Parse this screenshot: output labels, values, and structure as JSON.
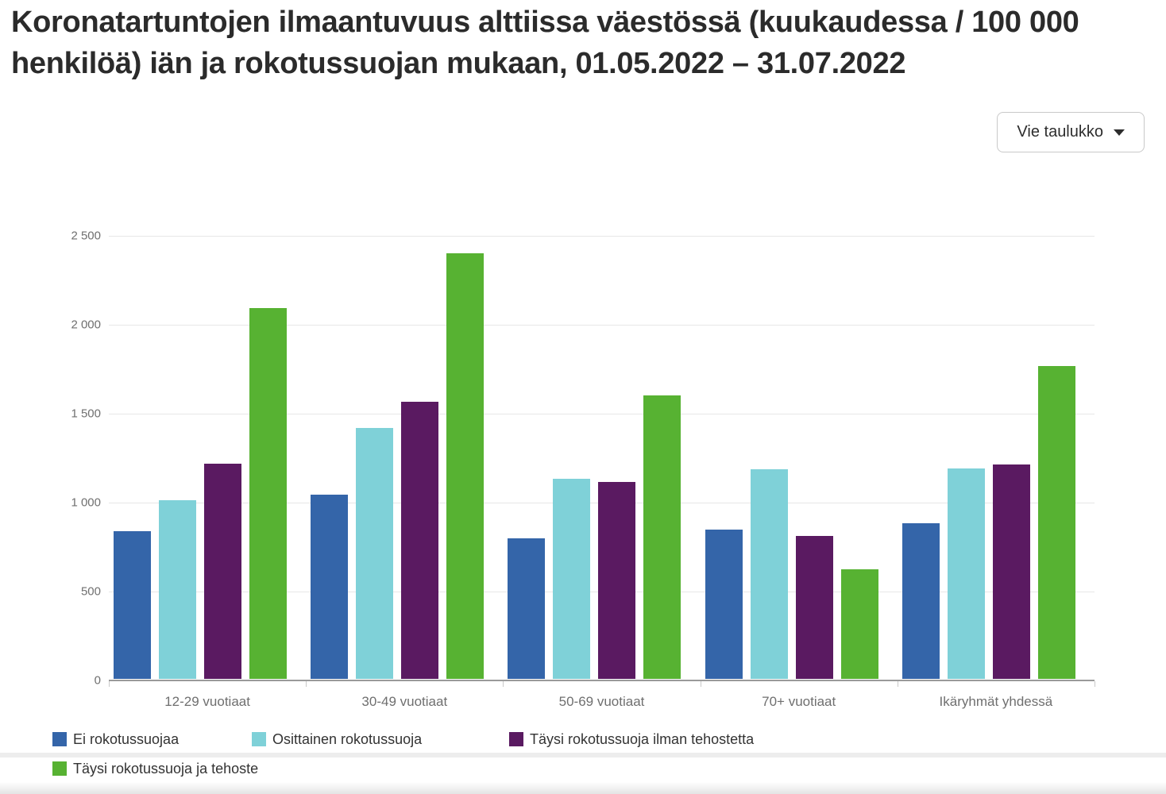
{
  "header": {
    "title_line1": "Koronatartuntojen ilmaantuvuus alttiissa väestössä (kuukaudessa / 100 000",
    "title_line2": "henkilöä) iän ja rokotussuojan mukaan, 01.05.2022 – 31.07.2022"
  },
  "toolbar": {
    "export_label": "Vie taulukko"
  },
  "chart_data": {
    "type": "bar",
    "title": "Koronatartuntojen ilmaantuvuus alttiissa väestössä (kuukaudessa / 100 000 henkilöä) iän ja rokotussuojan mukaan, 01.05.2022 – 31.07.2022",
    "categories": [
      "12-29 vuotiaat",
      "30-49 vuotiaat",
      "50-69 vuotiaat",
      "70+ vuotiaat",
      "Ikäryhmät yhdessä"
    ],
    "series": [
      {
        "name": "Ei rokotussuojaa",
        "color": "#3465a9",
        "values": [
          830,
          1035,
          790,
          840,
          875
        ]
      },
      {
        "name": "Osittainen rokotussuoja",
        "color": "#7fd1d8",
        "values": [
          1005,
          1410,
          1125,
          1180,
          1185
        ]
      },
      {
        "name": "Täysi rokotussuoja ilman tehostetta",
        "color": "#5a1a61",
        "values": [
          1210,
          1560,
          1105,
          805,
          1205
        ]
      },
      {
        "name": "Täysi rokotussuoja ja tehoste",
        "color": "#57b232",
        "values": [
          2085,
          2395,
          1595,
          615,
          1760
        ]
      }
    ],
    "xlabel": "",
    "ylabel": "",
    "ylim": [
      0,
      2500
    ],
    "yticks": [
      0,
      500,
      1000,
      1500,
      2000,
      2500
    ],
    "ytick_labels": [
      "0",
      "500",
      "1 000",
      "1 500",
      "2 000",
      "2 500"
    ],
    "grid": true,
    "legend_position": "bottom-left",
    "colors": {
      "grid_line": "#e7e7e7",
      "axis_line": "#9a9a9a",
      "axis_text": "#6f6f6f",
      "title_text": "#2b2b2b",
      "legend_text": "#333333"
    }
  }
}
